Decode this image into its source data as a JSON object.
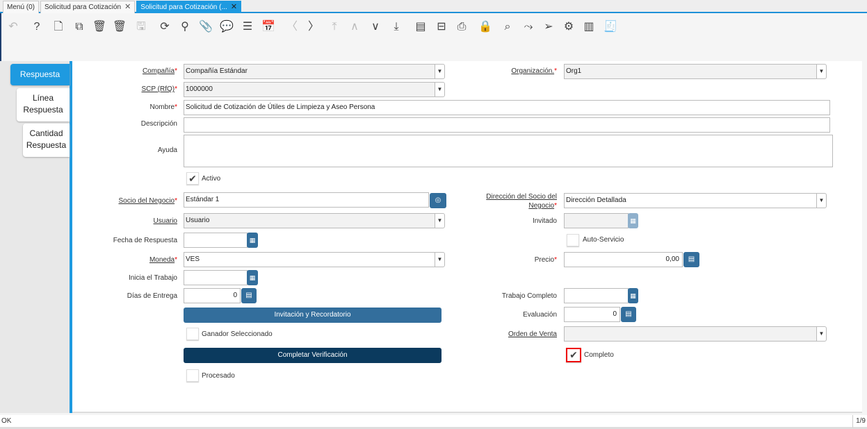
{
  "tabs": [
    {
      "label": "Menú (0)"
    },
    {
      "label": "Solicitud para Cotización"
    },
    {
      "label": "Solicitud para Cotización (..."
    }
  ],
  "toolbar": [
    {
      "name": "undo-icon",
      "g": "↶",
      "dis": true
    },
    {
      "name": "help-icon",
      "g": "?"
    },
    {
      "name": "new-record-icon",
      "g": "🗋"
    },
    {
      "name": "copy-record-icon",
      "g": "⧉"
    },
    {
      "name": "delete-icon",
      "g": "🗑"
    },
    {
      "name": "delete-selection-icon",
      "g": "🗑"
    },
    {
      "name": "save-icon",
      "g": "🖫",
      "dis": true
    },
    {
      "name": "refresh-icon",
      "g": "⟳"
    },
    {
      "name": "find-icon",
      "g": "⚲"
    },
    {
      "name": "attachment-icon",
      "g": "📎"
    },
    {
      "name": "chat-icon",
      "g": "💬"
    },
    {
      "name": "grid-toggle-icon",
      "g": "☰"
    },
    {
      "name": "calendar-icon",
      "g": "📅"
    },
    {
      "name": "previous-tab-icon",
      "g": "〈",
      "dis": true
    },
    {
      "name": "next-tab-icon",
      "g": "〉"
    },
    {
      "name": "first-record-icon",
      "g": "⤒",
      "dis": true
    },
    {
      "name": "previous-record-icon",
      "g": "∧",
      "dis": true
    },
    {
      "name": "next-record-icon",
      "g": "∨"
    },
    {
      "name": "last-record-icon",
      "g": "⤓"
    },
    {
      "name": "report-icon",
      "g": "▤"
    },
    {
      "name": "archive-icon",
      "g": "⊟"
    },
    {
      "name": "print-icon",
      "g": "⎙"
    },
    {
      "name": "lock-icon",
      "g": "🔒"
    },
    {
      "name": "zoom-across-icon",
      "g": "⌕"
    },
    {
      "name": "workflow-icon",
      "g": "⤳"
    },
    {
      "name": "send-icon",
      "g": "➢"
    },
    {
      "name": "process-icon",
      "g": "⚙"
    },
    {
      "name": "product-info-icon",
      "g": "▥"
    },
    {
      "name": "post-icon",
      "g": "🧾"
    }
  ],
  "side_tabs": [
    {
      "label": "Respuesta"
    },
    {
      "label": "Línea Respuesta"
    },
    {
      "label": "Cantidad Respuesta"
    }
  ],
  "form": {
    "compania": {
      "label": "Compañía",
      "value": "Compañía Estándar"
    },
    "organizacion": {
      "label": "Organización.",
      "value": "Org1"
    },
    "scp": {
      "label": "SCP (RfQ)",
      "value": "1000000"
    },
    "nombre": {
      "label": "Nombre",
      "value": "Solicitud de Cotización de Útiles de Limpieza y Aseo Persona"
    },
    "descripcion": {
      "label": "Descripción",
      "value": ""
    },
    "ayuda": {
      "label": "Ayuda",
      "value": ""
    },
    "activo": {
      "label": "Activo",
      "checked": true
    },
    "socio": {
      "label": "Socio del Negocio",
      "value": "Estándar 1"
    },
    "direccion": {
      "label1": "Dirección del Socio del",
      "label2": "Negocio",
      "value": "Dirección Detallada"
    },
    "usuario": {
      "label": "Usuario",
      "value": "Usuario"
    },
    "invitado": {
      "label": "Invitado",
      "value": ""
    },
    "fecha_respuesta": {
      "label": "Fecha de Respuesta",
      "value": ""
    },
    "auto_servicio": {
      "label": "Auto-Servicio",
      "checked": false
    },
    "moneda": {
      "label": "Moneda",
      "value": "VES"
    },
    "precio": {
      "label": "Precio",
      "value": "0,00"
    },
    "inicia_trabajo": {
      "label": "Inicia el Trabajo",
      "value": ""
    },
    "dias_entrega": {
      "label": "Días de Entrega",
      "value": "0"
    },
    "trabajo_completo": {
      "label": "Trabajo Completo",
      "value": ""
    },
    "invitacion_button": "Invitación y Recordatorio",
    "evaluacion": {
      "label": "Evaluación",
      "value": "0"
    },
    "ganador": {
      "label": "Ganador Seleccionado",
      "checked": false
    },
    "orden_venta": {
      "label": "Orden de Venta",
      "value": ""
    },
    "completar_button": "Completar Verificación",
    "completo": {
      "label": "Completo",
      "checked": true
    },
    "procesado": {
      "label": "Procesado",
      "checked": false
    }
  },
  "status": {
    "message": "OK",
    "record": "1/9"
  },
  "colors": {
    "accent": "#1e9ae0",
    "button": "#336e9c",
    "button_dark": "#0b3a5e",
    "required": "#e00000",
    "highlight": "#e00000"
  }
}
